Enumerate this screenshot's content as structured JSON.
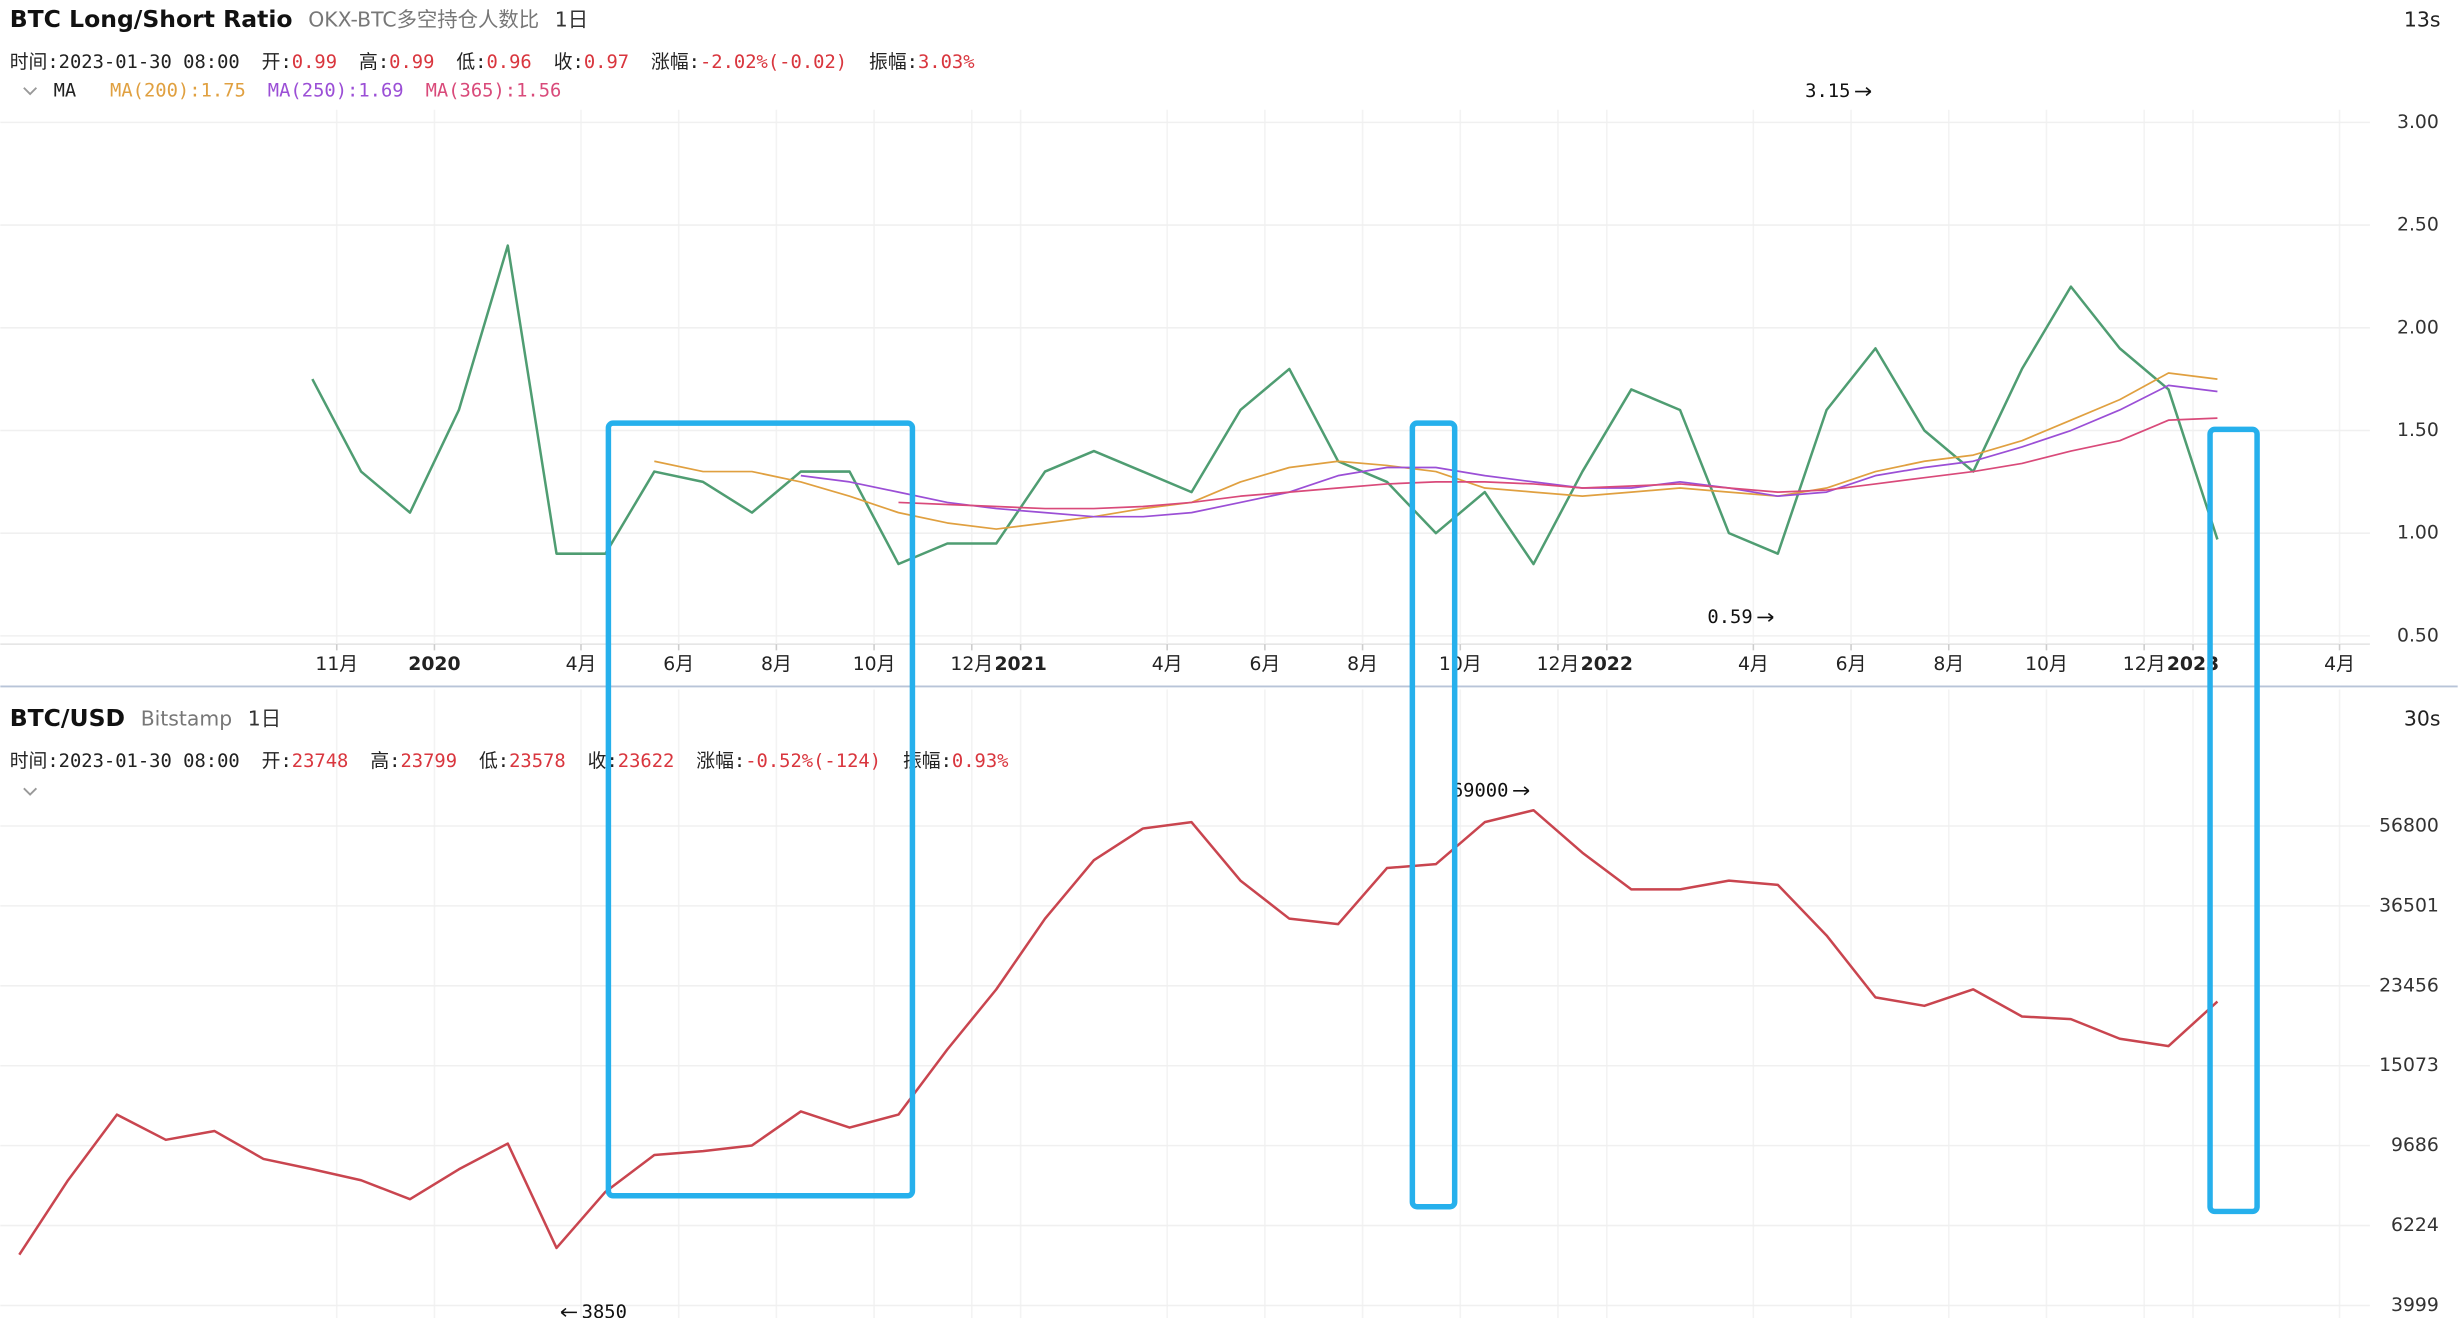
{
  "chart_data": [
    {
      "type": "line",
      "title": "BTC Long/Short Ratio",
      "subtitle": "OKX-BTC多空持仓人数比",
      "interval": "1日",
      "refresh": "13s",
      "info": [
        {
          "label": "时间:",
          "value": "2023-01-30 08:00"
        },
        {
          "label": "开:",
          "value": 0.99
        },
        {
          "label": "高:",
          "value": 0.99
        },
        {
          "label": "低:",
          "value": 0.96
        },
        {
          "label": "收:",
          "value": 0.97
        },
        {
          "label": "涨幅:",
          "value": "-2.02%(-0.02)"
        },
        {
          "label": "振幅:",
          "value": "3.03%"
        }
      ],
      "indicator": "MA",
      "color": "#4f9d72",
      "x": [
        "2019-10",
        "2019-11",
        "2019-12",
        "2020-01",
        "2020-02",
        "2020-03",
        "2020-04",
        "2020-05",
        "2020-06",
        "2020-07",
        "2020-08",
        "2020-09",
        "2020-10",
        "2020-11",
        "2020-12",
        "2021-01",
        "2021-02",
        "2021-03",
        "2021-04",
        "2021-05",
        "2021-06",
        "2021-07",
        "2021-08",
        "2021-09",
        "2021-10",
        "2021-11",
        "2021-12",
        "2022-01",
        "2022-02",
        "2022-03",
        "2022-04",
        "2022-05",
        "2022-06",
        "2022-07",
        "2022-08",
        "2022-09",
        "2022-10",
        "2022-11",
        "2022-12",
        "2023-01"
      ],
      "values": [
        1.75,
        1.3,
        1.1,
        1.6,
        2.4,
        0.9,
        0.9,
        1.3,
        1.25,
        1.1,
        1.3,
        1.3,
        0.85,
        0.95,
        0.95,
        1.3,
        1.4,
        1.3,
        1.2,
        1.6,
        1.8,
        1.35,
        1.25,
        1.0,
        1.2,
        0.85,
        1.3,
        1.7,
        1.6,
        1.0,
        0.9,
        1.6,
        1.9,
        1.5,
        1.3,
        1.8,
        2.2,
        1.9,
        1.7,
        0.97
      ],
      "series": [
        {
          "name": "MA(200):",
          "current": 1.75,
          "color": "#e0a040",
          "values": [
            null,
            null,
            null,
            null,
            null,
            null,
            null,
            1.35,
            1.3,
            1.3,
            1.25,
            1.18,
            1.1,
            1.05,
            1.02,
            1.05,
            1.08,
            1.12,
            1.15,
            1.25,
            1.32,
            1.35,
            1.33,
            1.3,
            1.22,
            1.2,
            1.18,
            1.2,
            1.22,
            1.2,
            1.18,
            1.22,
            1.3,
            1.35,
            1.38,
            1.45,
            1.55,
            1.65,
            1.78,
            1.75
          ]
        },
        {
          "name": "MA(250):",
          "current": 1.69,
          "color": "#9b4fd6",
          "values": [
            null,
            null,
            null,
            null,
            null,
            null,
            null,
            null,
            null,
            null,
            1.28,
            1.25,
            1.2,
            1.15,
            1.12,
            1.1,
            1.08,
            1.08,
            1.1,
            1.15,
            1.2,
            1.28,
            1.32,
            1.32,
            1.28,
            1.25,
            1.22,
            1.22,
            1.25,
            1.22,
            1.18,
            1.2,
            1.28,
            1.32,
            1.35,
            1.42,
            1.5,
            1.6,
            1.72,
            1.69
          ]
        },
        {
          "name": "MA(365):",
          "current": 1.56,
          "color": "#d94a7a",
          "values": [
            null,
            null,
            null,
            null,
            null,
            null,
            null,
            null,
            null,
            null,
            null,
            null,
            1.15,
            1.14,
            1.13,
            1.12,
            1.12,
            1.13,
            1.15,
            1.18,
            1.2,
            1.22,
            1.24,
            1.25,
            1.25,
            1.24,
            1.22,
            1.23,
            1.24,
            1.22,
            1.2,
            1.21,
            1.24,
            1.27,
            1.3,
            1.34,
            1.4,
            1.45,
            1.55,
            1.56
          ]
        }
      ],
      "ylim": [
        0.46,
        3.55
      ],
      "yticks": [
        {
          "value": 0.5,
          "label": "0.50"
        },
        {
          "value": 1,
          "label": "1.00"
        },
        {
          "value": 1.5,
          "label": "1.50"
        },
        {
          "value": 2,
          "label": "2.00"
        },
        {
          "value": 2.5,
          "label": "2.50"
        },
        {
          "value": 3,
          "label": "3.00"
        }
      ],
      "xticks": [
        {
          "value": "2019-11",
          "label": "11月"
        },
        {
          "value": "2020-01",
          "label": "2020"
        },
        {
          "value": "2020-04",
          "label": "4月"
        },
        {
          "value": "2020-06",
          "label": "6月"
        },
        {
          "value": "2020-08",
          "label": "8月"
        },
        {
          "value": "2020-10",
          "label": "10月"
        },
        {
          "value": "2020-12",
          "label": "12月"
        },
        {
          "value": "2021-01",
          "label": "2021"
        },
        {
          "value": "2021-04",
          "label": "4月"
        },
        {
          "value": "2021-06",
          "label": "6月"
        },
        {
          "value": "2021-08",
          "label": "8月"
        },
        {
          "value": "2021-10",
          "label": "10月"
        },
        {
          "value": "2021-12",
          "label": "12月"
        },
        {
          "value": "2022-01",
          "label": "2022"
        },
        {
          "value": "2022-04",
          "label": "4月"
        },
        {
          "value": "2022-06",
          "label": "6月"
        },
        {
          "value": "2022-08",
          "label": "8月"
        },
        {
          "value": "2022-10",
          "label": "10月"
        },
        {
          "value": "2022-12",
          "label": "12月"
        },
        {
          "value": "2023-01",
          "label": "2023"
        },
        {
          "value": "2023-04",
          "label": "4月"
        }
      ],
      "annotations": [
        {
          "x": "2022-06",
          "value": 3.15
        },
        {
          "x": "2022-04",
          "value": 0.59
        }
      ],
      "grid": true
    },
    {
      "type": "line",
      "title": "BTC/USD",
      "subtitle": "Bitstamp",
      "interval": "1日",
      "refresh": "30s",
      "info": [
        {
          "label": "时间:",
          "value": "2023-01-30 08:00"
        },
        {
          "label": "开:",
          "value": 23748
        },
        {
          "label": "高:",
          "value": 23799
        },
        {
          "label": "低:",
          "value": 23578
        },
        {
          "label": "收:",
          "value": 23622
        },
        {
          "label": "涨幅:",
          "value": "-0.52%(-124)"
        },
        {
          "label": "振幅:",
          "value": "0.93%"
        }
      ],
      "color": "#c9454f",
      "log": true,
      "x": [
        "2019-04",
        "2019-05",
        "2019-06",
        "2019-07",
        "2019-08",
        "2019-09",
        "2019-10",
        "2019-11",
        "2019-12",
        "2020-01",
        "2020-02",
        "2020-03",
        "2020-04",
        "2020-05",
        "2020-06",
        "2020-07",
        "2020-08",
        "2020-09",
        "2020-10",
        "2020-11",
        "2020-12",
        "2021-01",
        "2021-02",
        "2021-03",
        "2021-04",
        "2021-05",
        "2021-06",
        "2021-07",
        "2021-08",
        "2021-09",
        "2021-10",
        "2021-11",
        "2021-12",
        "2022-01",
        "2022-02",
        "2022-03",
        "2022-04",
        "2022-05",
        "2022-06",
        "2022-07",
        "2022-08",
        "2022-09",
        "2022-10",
        "2022-11",
        "2022-12",
        "2023-01"
      ],
      "values": [
        5300,
        8000,
        11500,
        10000,
        10500,
        9000,
        8500,
        8000,
        7200,
        8500,
        9800,
        5500,
        7500,
        9200,
        9400,
        9700,
        11700,
        10700,
        11500,
        16500,
        23000,
        34000,
        47000,
        56000,
        58000,
        42000,
        34000,
        33000,
        45000,
        46000,
        58000,
        62000,
        49000,
        40000,
        40000,
        42000,
        41000,
        31000,
        22000,
        21000,
        23000,
        19800,
        19500,
        17500,
        16800,
        21500
      ],
      "ylim": [
        3732,
        75000
      ],
      "yticks": [
        3999,
        6224,
        9686,
        15073,
        23456,
        36501,
        56800
      ],
      "annotations": [
        {
          "x": "2021-11",
          "value": 69000
        },
        {
          "x": "2020-03",
          "value": 3850
        }
      ],
      "grid": true
    }
  ]
}
